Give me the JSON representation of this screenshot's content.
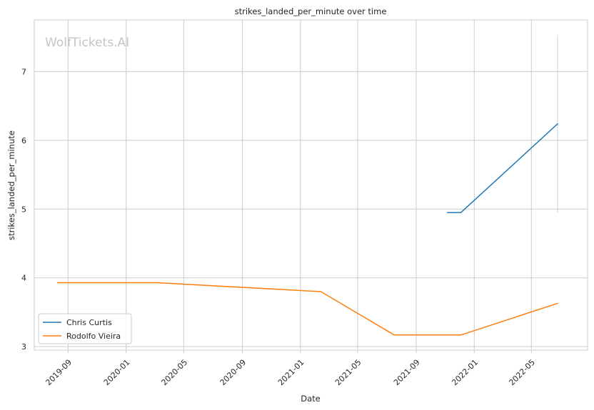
{
  "chart_data": {
    "type": "line",
    "title": "strikes_landed_per_minute over time",
    "xlabel": "Date",
    "ylabel": "strikes_landed_per_minute",
    "watermark": "WolfTickets.AI",
    "x_range": [
      "2019-06-22",
      "2022-08-27"
    ],
    "ylim": [
      2.95,
      7.75
    ],
    "x_ticks": [
      "2019-09-01",
      "2020-01-01",
      "2020-05-01",
      "2020-09-01",
      "2021-01-01",
      "2021-05-01",
      "2021-09-01",
      "2022-01-01",
      "2022-05-01"
    ],
    "x_tick_labels": [
      "2019-09",
      "2020-01",
      "2020-05",
      "2020-09",
      "2021-01",
      "2021-05",
      "2021-09",
      "2022-01",
      "2022-05"
    ],
    "y_ticks": [
      3,
      4,
      5,
      6,
      7
    ],
    "y_tick_labels": [
      "3",
      "4",
      "5",
      "6",
      "7"
    ],
    "grid": true,
    "legend_position": "lower-left",
    "series": [
      {
        "name": "Chris Curtis",
        "color": "#1f77b4",
        "points": [
          {
            "x": "2021-11-06",
            "y": 4.95
          },
          {
            "x": "2021-12-04",
            "y": 4.95
          },
          {
            "x": "2022-06-25",
            "y": 6.24
          }
        ],
        "band": {
          "x": "2022-06-25",
          "low": 4.95,
          "high": 7.53
        }
      },
      {
        "name": "Rodolfo Vieira",
        "color": "#ff7f0e",
        "points": [
          {
            "x": "2019-08-10",
            "y": 3.93
          },
          {
            "x": "2020-03-07",
            "y": 3.93
          },
          {
            "x": "2021-02-13",
            "y": 3.8
          },
          {
            "x": "2021-07-17",
            "y": 3.17
          },
          {
            "x": "2021-12-04",
            "y": 3.17
          },
          {
            "x": "2022-06-25",
            "y": 3.63
          }
        ]
      }
    ]
  }
}
